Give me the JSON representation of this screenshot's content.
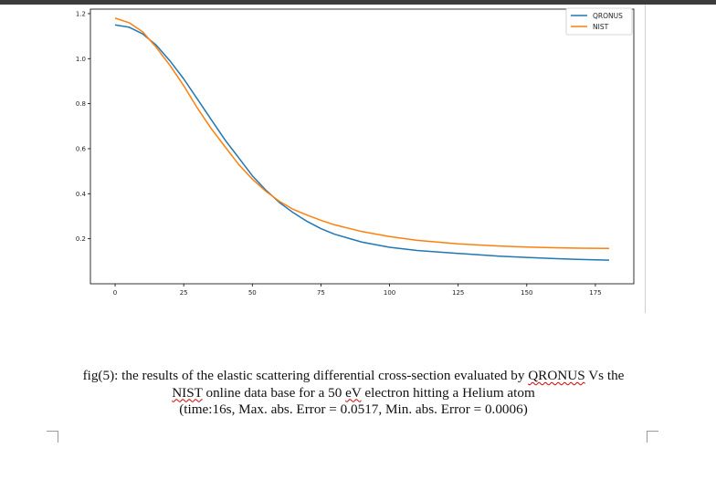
{
  "caption": {
    "line1_prefix": "fig(5): the results of the elastic scattering differential cross-section evaluated by ",
    "line1_qronus": "QRONUS",
    "line1_suffix": " Vs the",
    "line2_nist": "NIST",
    "line2_mid": " online data base for a 50 ",
    "line2_ev": "eV",
    "line2_suffix": " electron hitting a Helium atom",
    "line3": "(time:16s, Max. abs. Error = 0.0517, Min. abs. Error = 0.0006)"
  },
  "colors": {
    "qronus": "#1f77b4",
    "nist": "#ff7f0e"
  },
  "chart_data": {
    "type": "line",
    "title": "",
    "xlabel": "",
    "ylabel": "",
    "xlim": [
      -9,
      189
    ],
    "ylim": [
      0.0,
      1.22
    ],
    "xticks": [
      0,
      25,
      50,
      75,
      100,
      125,
      150,
      175
    ],
    "yticks": [
      0.2,
      0.4,
      0.6,
      0.8,
      1.0,
      1.2
    ],
    "ytick_labels": [
      "0.2",
      "0.4",
      "0.6",
      "0.8",
      "1.0",
      "1.2"
    ],
    "legend_position": "top-right",
    "series": [
      {
        "name": "QRONUS",
        "color": "#1f77b4",
        "x": [
          0,
          5,
          10,
          15,
          20,
          25,
          30,
          35,
          40,
          45,
          50,
          55,
          60,
          65,
          70,
          75,
          80,
          90,
          100,
          110,
          125,
          140,
          150,
          160,
          170,
          180
        ],
        "y": [
          1.15,
          1.14,
          1.11,
          1.06,
          0.99,
          0.91,
          0.82,
          0.73,
          0.64,
          0.56,
          0.48,
          0.415,
          0.36,
          0.315,
          0.277,
          0.245,
          0.22,
          0.185,
          0.162,
          0.148,
          0.135,
          0.123,
          0.117,
          0.112,
          0.108,
          0.105
        ]
      },
      {
        "name": "NIST",
        "color": "#ff7f0e",
        "x": [
          0,
          5,
          10,
          15,
          20,
          25,
          30,
          35,
          40,
          45,
          50,
          55,
          60,
          65,
          70,
          75,
          80,
          90,
          100,
          110,
          125,
          140,
          150,
          160,
          170,
          180
        ],
        "y": [
          1.18,
          1.16,
          1.12,
          1.05,
          0.97,
          0.88,
          0.78,
          0.69,
          0.61,
          0.53,
          0.465,
          0.41,
          0.365,
          0.33,
          0.305,
          0.282,
          0.262,
          0.232,
          0.21,
          0.193,
          0.177,
          0.168,
          0.163,
          0.16,
          0.158,
          0.157
        ]
      }
    ]
  }
}
